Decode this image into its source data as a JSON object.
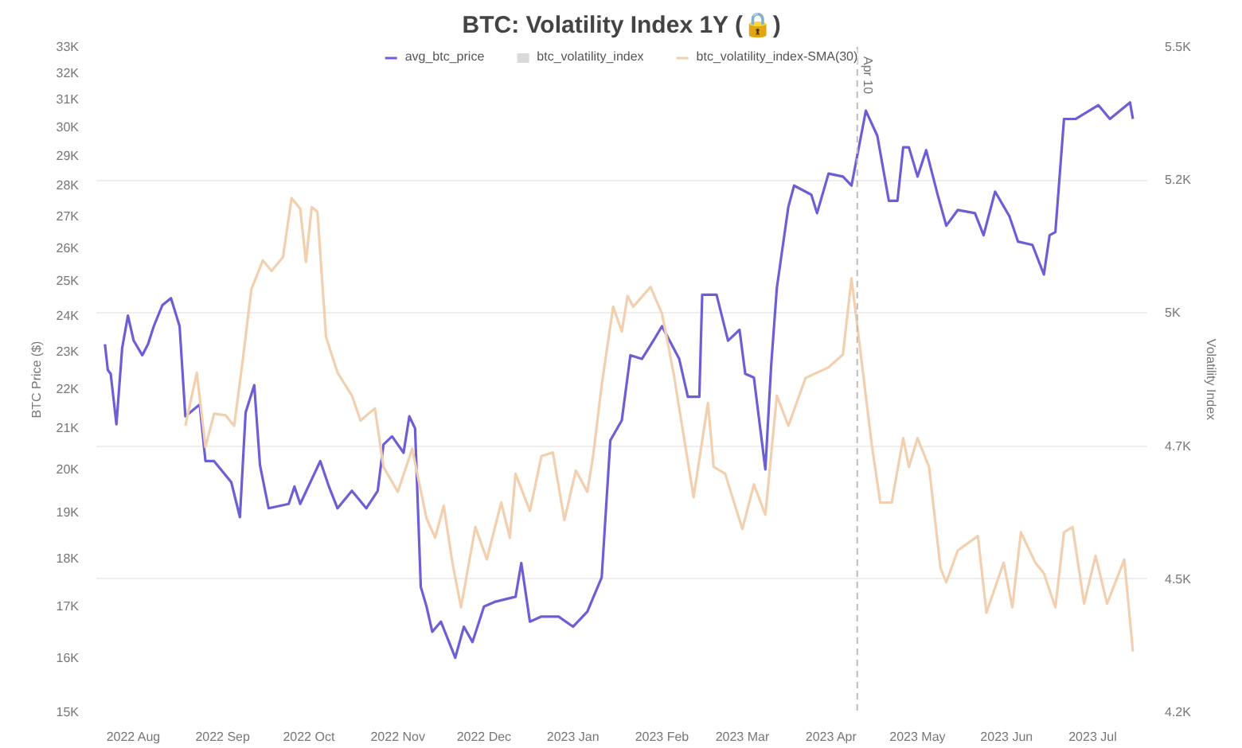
{
  "chart_data": {
    "type": "line",
    "title": "BTC: Volatility Index 1Y (🔒)",
    "ylabel": "BTC Price ($)",
    "y2label": "Volatility Index",
    "log": "y",
    "grid": "y",
    "legend": "top",
    "marker": "none",
    "line_style": "solid",
    "xlim": [
      "2022-07-19",
      "2023-07-20"
    ],
    "xticks": [
      {
        "value": "2022-08-01",
        "label": "2022 Aug"
      },
      {
        "value": "2022-09-01",
        "label": "2022 Sep"
      },
      {
        "value": "2022-10-01",
        "label": "2022 Oct"
      },
      {
        "value": "2022-11-01",
        "label": "2022 Nov"
      },
      {
        "value": "2022-12-01",
        "label": "2022 Dec"
      },
      {
        "value": "2023-01-01",
        "label": "2023 Jan"
      },
      {
        "value": "2023-02-01",
        "label": "2023 Feb"
      },
      {
        "value": "2023-03-01",
        "label": "2023 Mar"
      },
      {
        "value": "2023-04-01",
        "label": "2023 Apr"
      },
      {
        "value": "2023-05-01",
        "label": "2023 May"
      },
      {
        "value": "2023-06-01",
        "label": "2023 Jun"
      },
      {
        "value": "2023-07-01",
        "label": "2023 Jul"
      }
    ],
    "ylim": [
      15000,
      33000
    ],
    "yticks": [
      {
        "value": 15000,
        "label": "15K"
      },
      {
        "value": 16000,
        "label": "16K"
      },
      {
        "value": 17000,
        "label": "17K"
      },
      {
        "value": 18000,
        "label": "18K"
      },
      {
        "value": 19000,
        "label": "19K"
      },
      {
        "value": 20000,
        "label": "20K"
      },
      {
        "value": 21000,
        "label": "21K"
      },
      {
        "value": 22000,
        "label": "22K"
      },
      {
        "value": 23000,
        "label": "23K"
      },
      {
        "value": 24000,
        "label": "24K"
      },
      {
        "value": 25000,
        "label": "25K"
      },
      {
        "value": 26000,
        "label": "26K"
      },
      {
        "value": 27000,
        "label": "27K"
      },
      {
        "value": 28000,
        "label": "28K"
      },
      {
        "value": 29000,
        "label": "29K"
      },
      {
        "value": 30000,
        "label": "30K"
      },
      {
        "value": 31000,
        "label": "31K"
      },
      {
        "value": 32000,
        "label": "32K"
      },
      {
        "value": 33000,
        "label": "33K"
      }
    ],
    "y2lim": [
      4250,
      5500
    ],
    "y2ticks": [
      {
        "value": 4250,
        "label": "4.2K"
      },
      {
        "value": 4500,
        "label": "4.5K"
      },
      {
        "value": 4750,
        "label": "4.7K"
      },
      {
        "value": 5000,
        "label": "5K"
      },
      {
        "value": 5250,
        "label": "5.2K"
      },
      {
        "value": 5500,
        "label": "5.5K"
      }
    ],
    "ref_lines": [
      {
        "axis": "x",
        "value": "2023-04-10",
        "label": "Apr 10",
        "color": "#bbbbbb",
        "line_style": "dashed"
      }
    ],
    "series": [
      {
        "name": "avg_btc_price",
        "color": "#6c5fd6",
        "x": [
          "2022-07-22",
          "2022-07-23",
          "2022-07-24",
          "2022-07-26",
          "2022-07-28",
          "2022-07-30",
          "2022-08-01",
          "2022-08-04",
          "2022-08-06",
          "2022-08-08",
          "2022-08-11",
          "2022-08-14",
          "2022-08-17",
          "2022-08-19",
          "2022-08-24",
          "2022-08-26",
          "2022-08-29",
          "2022-09-04",
          "2022-09-07",
          "2022-09-09",
          "2022-09-12",
          "2022-09-14",
          "2022-09-17",
          "2022-09-24",
          "2022-09-26",
          "2022-09-28",
          "2022-10-05",
          "2022-10-08",
          "2022-10-11",
          "2022-10-16",
          "2022-10-21",
          "2022-10-25",
          "2022-10-27",
          "2022-10-30",
          "2022-11-03",
          "2022-11-05",
          "2022-11-07",
          "2022-11-09",
          "2022-11-11",
          "2022-11-13",
          "2022-11-16",
          "2022-11-21",
          "2022-11-24",
          "2022-11-27",
          "2022-12-01",
          "2022-12-05",
          "2022-12-12",
          "2022-12-14",
          "2022-12-17",
          "2022-12-21",
          "2022-12-27",
          "2023-01-01",
          "2023-01-06",
          "2023-01-11",
          "2023-01-14",
          "2023-01-18",
          "2023-01-21",
          "2023-01-25",
          "2023-01-29",
          "2023-02-01",
          "2023-02-07",
          "2023-02-10",
          "2023-02-14",
          "2023-02-15",
          "2023-02-20",
          "2023-02-24",
          "2023-02-28",
          "2023-03-02",
          "2023-03-05",
          "2023-03-09",
          "2023-03-11",
          "2023-03-13",
          "2023-03-17",
          "2023-03-19",
          "2023-03-25",
          "2023-03-27",
          "2023-03-31",
          "2023-04-05",
          "2023-04-08",
          "2023-04-13",
          "2023-04-17",
          "2023-04-21",
          "2023-04-24",
          "2023-04-26",
          "2023-04-28",
          "2023-05-01",
          "2023-05-04",
          "2023-05-08",
          "2023-05-11",
          "2023-05-15",
          "2023-05-21",
          "2023-05-24",
          "2023-05-28",
          "2023-06-02",
          "2023-06-05",
          "2023-06-10",
          "2023-06-14",
          "2023-06-16",
          "2023-06-18",
          "2023-06-21",
          "2023-06-25",
          "2023-07-03",
          "2023-07-07",
          "2023-07-14",
          "2023-07-15"
        ],
        "values": [
          23200,
          22500,
          22400,
          21100,
          23100,
          24000,
          23300,
          22900,
          23200,
          23700,
          24300,
          24500,
          23700,
          21300,
          21600,
          20200,
          20200,
          19700,
          18900,
          21400,
          22100,
          20100,
          19100,
          19200,
          19600,
          19200,
          20200,
          19600,
          19100,
          19500,
          19100,
          19500,
          20600,
          20800,
          20400,
          21300,
          21000,
          17400,
          17000,
          16500,
          16700,
          16000,
          16600,
          16300,
          17000,
          17100,
          17200,
          17900,
          16700,
          16800,
          16800,
          16600,
          16900,
          17600,
          20700,
          21200,
          22900,
          22800,
          23300,
          23700,
          22800,
          21800,
          21800,
          24600,
          24600,
          23300,
          23600,
          22400,
          22300,
          20000,
          22600,
          24800,
          27300,
          28000,
          27700,
          27100,
          28400,
          28300,
          28000,
          30600,
          29700,
          27500,
          27500,
          29300,
          29300,
          28300,
          29200,
          27700,
          26700,
          27200,
          27100,
          26400,
          27800,
          27000,
          26200,
          26100,
          25200,
          26400,
          26500,
          30300,
          30300,
          30800,
          30300,
          30900,
          30300
        ]
      },
      {
        "name": "btc_volatility_index",
        "color": "#d9d9d9"
      },
      {
        "name": "btc_volatility_index-SMA(30)",
        "color": "#f2cfae",
        "axis": "y2",
        "x": [
          "2022-08-19",
          "2022-08-23",
          "2022-08-26",
          "2022-08-29",
          "2022-09-02",
          "2022-09-05",
          "2022-09-08",
          "2022-09-11",
          "2022-09-15",
          "2022-09-18",
          "2022-09-22",
          "2022-09-25",
          "2022-09-28",
          "2022-09-30",
          "2022-10-02",
          "2022-10-04",
          "2022-10-07",
          "2022-10-11",
          "2022-10-16",
          "2022-10-19",
          "2022-10-24",
          "2022-10-27",
          "2022-11-01",
          "2022-11-06",
          "2022-11-11",
          "2022-11-14",
          "2022-11-17",
          "2022-11-20",
          "2022-11-23",
          "2022-11-28",
          "2022-12-02",
          "2022-12-07",
          "2022-12-10",
          "2022-12-12",
          "2022-12-17",
          "2022-12-21",
          "2022-12-25",
          "2022-12-29",
          "2023-01-02",
          "2023-01-06",
          "2023-01-08",
          "2023-01-11",
          "2023-01-15",
          "2023-01-18",
          "2023-01-20",
          "2023-01-22",
          "2023-01-28",
          "2023-02-01",
          "2023-02-05",
          "2023-02-12",
          "2023-02-17",
          "2023-02-19",
          "2023-02-23",
          "2023-03-01",
          "2023-03-05",
          "2023-03-09",
          "2023-03-13",
          "2023-03-17",
          "2023-03-23",
          "2023-03-31",
          "2023-04-05",
          "2023-04-08",
          "2023-04-12",
          "2023-04-15",
          "2023-04-18",
          "2023-04-22",
          "2023-04-26",
          "2023-04-28",
          "2023-05-01",
          "2023-05-05",
          "2023-05-09",
          "2023-05-11",
          "2023-05-15",
          "2023-05-22",
          "2023-05-25",
          "2023-05-31",
          "2023-06-03",
          "2023-06-06",
          "2023-06-11",
          "2023-06-14",
          "2023-06-18",
          "2023-06-21",
          "2023-06-24",
          "2023-06-28",
          "2023-07-02",
          "2023-07-06",
          "2023-07-12",
          "2023-07-15"
        ],
        "values": [
          4788,
          4888,
          4748,
          4811,
          4808,
          4788,
          4912,
          5045,
          5099,
          5079,
          5105,
          5216,
          5196,
          5096,
          5199,
          5190,
          4955,
          4888,
          4845,
          4798,
          4821,
          4711,
          4664,
          4745,
          4614,
          4578,
          4638,
          4531,
          4447,
          4598,
          4537,
          4644,
          4578,
          4698,
          4628,
          4731,
          4738,
          4611,
          4704,
          4664,
          4731,
          4865,
          5012,
          4965,
          5032,
          5012,
          5049,
          4999,
          4888,
          4654,
          4831,
          4711,
          4698,
          4594,
          4678,
          4621,
          4845,
          4788,
          4878,
          4898,
          4922,
          5065,
          4888,
          4755,
          4644,
          4644,
          4765,
          4711,
          4765,
          4711,
          4521,
          4494,
          4554,
          4581,
          4437,
          4531,
          4447,
          4588,
          4531,
          4511,
          4447,
          4588,
          4598,
          4454,
          4544,
          4454,
          4537,
          4364
        ]
      }
    ]
  }
}
